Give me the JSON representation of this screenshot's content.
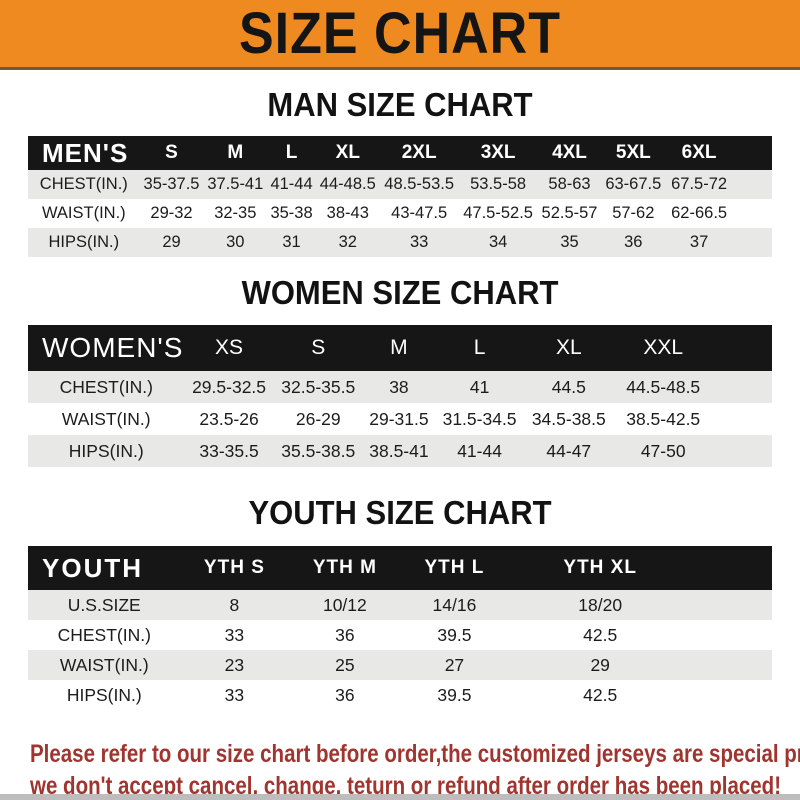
{
  "banner": {
    "title": "SIZE CHART",
    "bg_color": "#EE8A1F",
    "text_color": "#151515"
  },
  "colors": {
    "table_header_bg": "#161616",
    "table_header_text": "#ffffff",
    "row_stripe": "#E8E8E6",
    "disclaimer_red": "#A0342E"
  },
  "sections": [
    {
      "heading": "MAN SIZE CHART",
      "table": {
        "label": "MEN'S",
        "columns": [
          "S",
          "M",
          "L",
          "XL",
          "2XL",
          "3XL",
          "4XL",
          "5XL",
          "6XL"
        ],
        "rows": [
          {
            "label": "CHEST(IN.)",
            "values": [
              "35-37.5",
              "37.5-41",
              "41-44",
              "44-48.5",
              "48.5-53.5",
              "53.5-58",
              "58-63",
              "63-67.5",
              "67.5-72"
            ]
          },
          {
            "label": "WAIST(IN.)",
            "values": [
              "29-32",
              "32-35",
              "35-38",
              "38-43",
              "43-47.5",
              "47.5-52.5",
              "52.5-57",
              "57-62",
              "62-66.5"
            ]
          },
          {
            "label": "HIPS(IN.)",
            "values": [
              "29",
              "30",
              "31",
              "32",
              "33",
              "34",
              "35",
              "36",
              "37"
            ]
          }
        ]
      }
    },
    {
      "heading": "WOMEN SIZE CHART",
      "table": {
        "label": "WOMEN'S",
        "columns": [
          "XS",
          "S",
          "M",
          "L",
          "XL",
          "XXL"
        ],
        "rows": [
          {
            "label": "CHEST(IN.)",
            "values": [
              "29.5-32.5",
              "32.5-35.5",
              "38",
              "41",
              "44.5",
              "44.5-48.5"
            ]
          },
          {
            "label": "WAIST(IN.)",
            "values": [
              "23.5-26",
              "26-29",
              "29-31.5",
              "31.5-34.5",
              "34.5-38.5",
              "38.5-42.5"
            ]
          },
          {
            "label": "HIPS(IN.)",
            "values": [
              "33-35.5",
              "35.5-38.5",
              "38.5-41",
              "41-44",
              "44-47",
              "47-50"
            ]
          }
        ]
      }
    },
    {
      "heading": "YOUTH SIZE CHART",
      "table": {
        "label": "YOUTH",
        "columns": [
          "YTH S",
          "YTH M",
          "YTH L",
          "YTH XL"
        ],
        "rows": [
          {
            "label": "U.S.SIZE",
            "values": [
              "8",
              "10/12",
              "14/16",
              "18/20"
            ]
          },
          {
            "label": "CHEST(IN.)",
            "values": [
              "33",
              "36",
              "39.5",
              "42.5"
            ]
          },
          {
            "label": "WAIST(IN.)",
            "values": [
              "23",
              "25",
              "27",
              "29"
            ]
          },
          {
            "label": "HIPS(IN.)",
            "values": [
              "33",
              "36",
              "39.5",
              "42.5"
            ]
          }
        ]
      }
    }
  ],
  "footer": {
    "line1": "Please refer to our size chart before order,the customized jerseys are special products,",
    "line2": "we don't accept cancel, change, teturn or refund after order has been placed!"
  }
}
